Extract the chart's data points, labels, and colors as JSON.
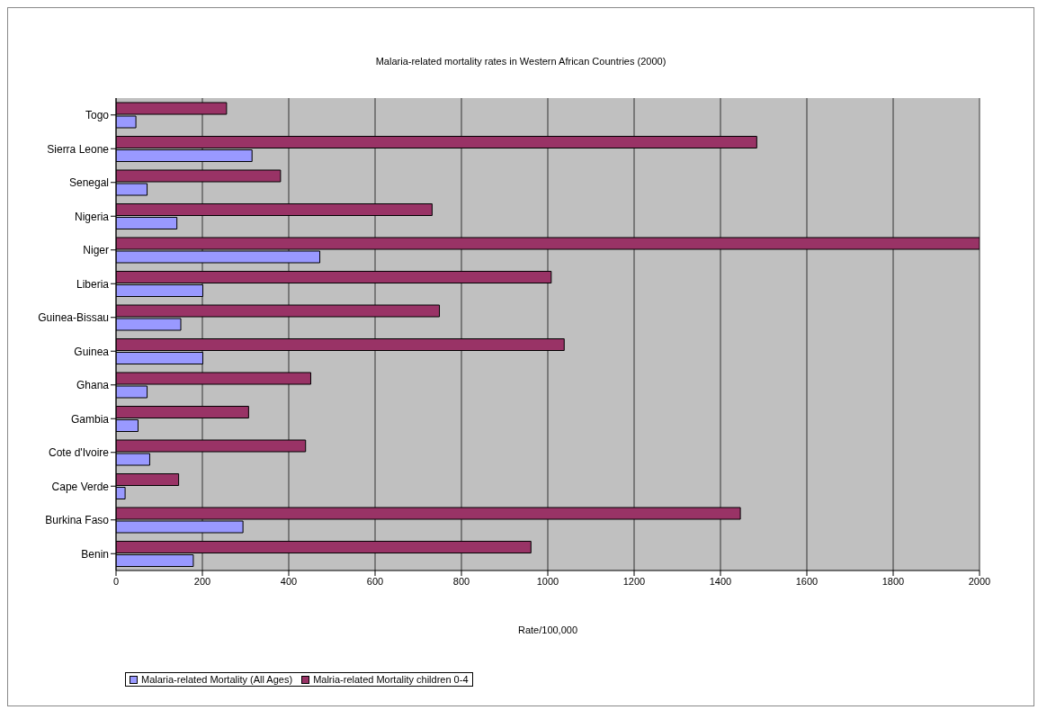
{
  "chart_data": {
    "type": "bar",
    "orientation": "horizontal",
    "title": "Malaria-related mortality rates in Western African Countries (2000)",
    "xlabel": "Rate/100,000",
    "categories": [
      "Togo",
      "Sierra Leone",
      "Senegal",
      "Nigeria",
      "Niger",
      "Liberia",
      "Guinea-Bissau",
      "Guinea",
      "Ghana",
      "Gambia",
      "Cote d'Ivoire",
      "Cape Verde",
      "Burkina Faso",
      "Benin"
    ],
    "series": [
      {
        "name": "Malaria-related  Mortality (All Ages)",
        "color": "#9999ff",
        "values": [
          46,
          315,
          72,
          141,
          472,
          201,
          150,
          201,
          72,
          51,
          78,
          21,
          294,
          179
        ]
      },
      {
        "name": "Malria-related Mortality children 0-4",
        "color": "#993366",
        "values": [
          256,
          1484,
          381,
          732,
          2000,
          1008,
          749,
          1038,
          451,
          307,
          439,
          145,
          1446,
          961
        ]
      }
    ],
    "xlim": [
      0,
      2000
    ],
    "xticks": [
      0,
      200,
      400,
      600,
      800,
      1000,
      1200,
      1400,
      1600,
      1800,
      2000
    ],
    "grid": "x",
    "legend": "bottom left"
  }
}
